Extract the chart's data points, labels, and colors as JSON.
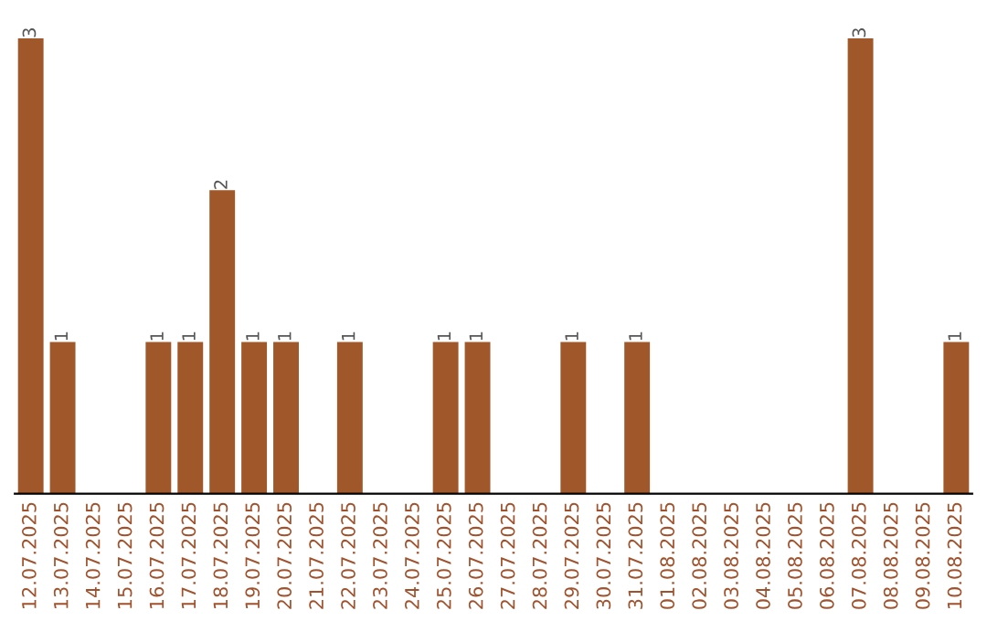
{
  "chart_data": {
    "type": "bar",
    "categories": [
      "12.07.2025",
      "13.07.2025",
      "14.07.2025",
      "15.07.2025",
      "16.07.2025",
      "17.07.2025",
      "18.07.2025",
      "19.07.2025",
      "20.07.2025",
      "21.07.2025",
      "22.07.2025",
      "23.07.2025",
      "24.07.2025",
      "25.07.2025",
      "26.07.2025",
      "27.07.2025",
      "28.07.2025",
      "29.07.2025",
      "30.07.2025",
      "31.07.2025",
      "01.08.2025",
      "02.08.2025",
      "03.08.2025",
      "04.08.2025",
      "05.08.2025",
      "06.08.2025",
      "07.08.2025",
      "08.08.2025",
      "09.08.2025",
      "10.08.2025"
    ],
    "values": [
      3,
      1,
      0,
      0,
      1,
      1,
      2,
      1,
      1,
      0,
      1,
      0,
      0,
      1,
      1,
      0,
      0,
      1,
      0,
      1,
      0,
      0,
      0,
      0,
      0,
      0,
      3,
      0,
      0,
      1
    ],
    "value_labels": [
      "3",
      "1",
      null,
      null,
      "1",
      "1",
      "2",
      "1",
      "1",
      null,
      "1",
      null,
      null,
      "1",
      "1",
      null,
      null,
      "1",
      null,
      "1",
      null,
      null,
      null,
      null,
      null,
      null,
      "3",
      null,
      null,
      "1"
    ],
    "color": "#a0582a",
    "grid": false,
    "legend": false
  }
}
